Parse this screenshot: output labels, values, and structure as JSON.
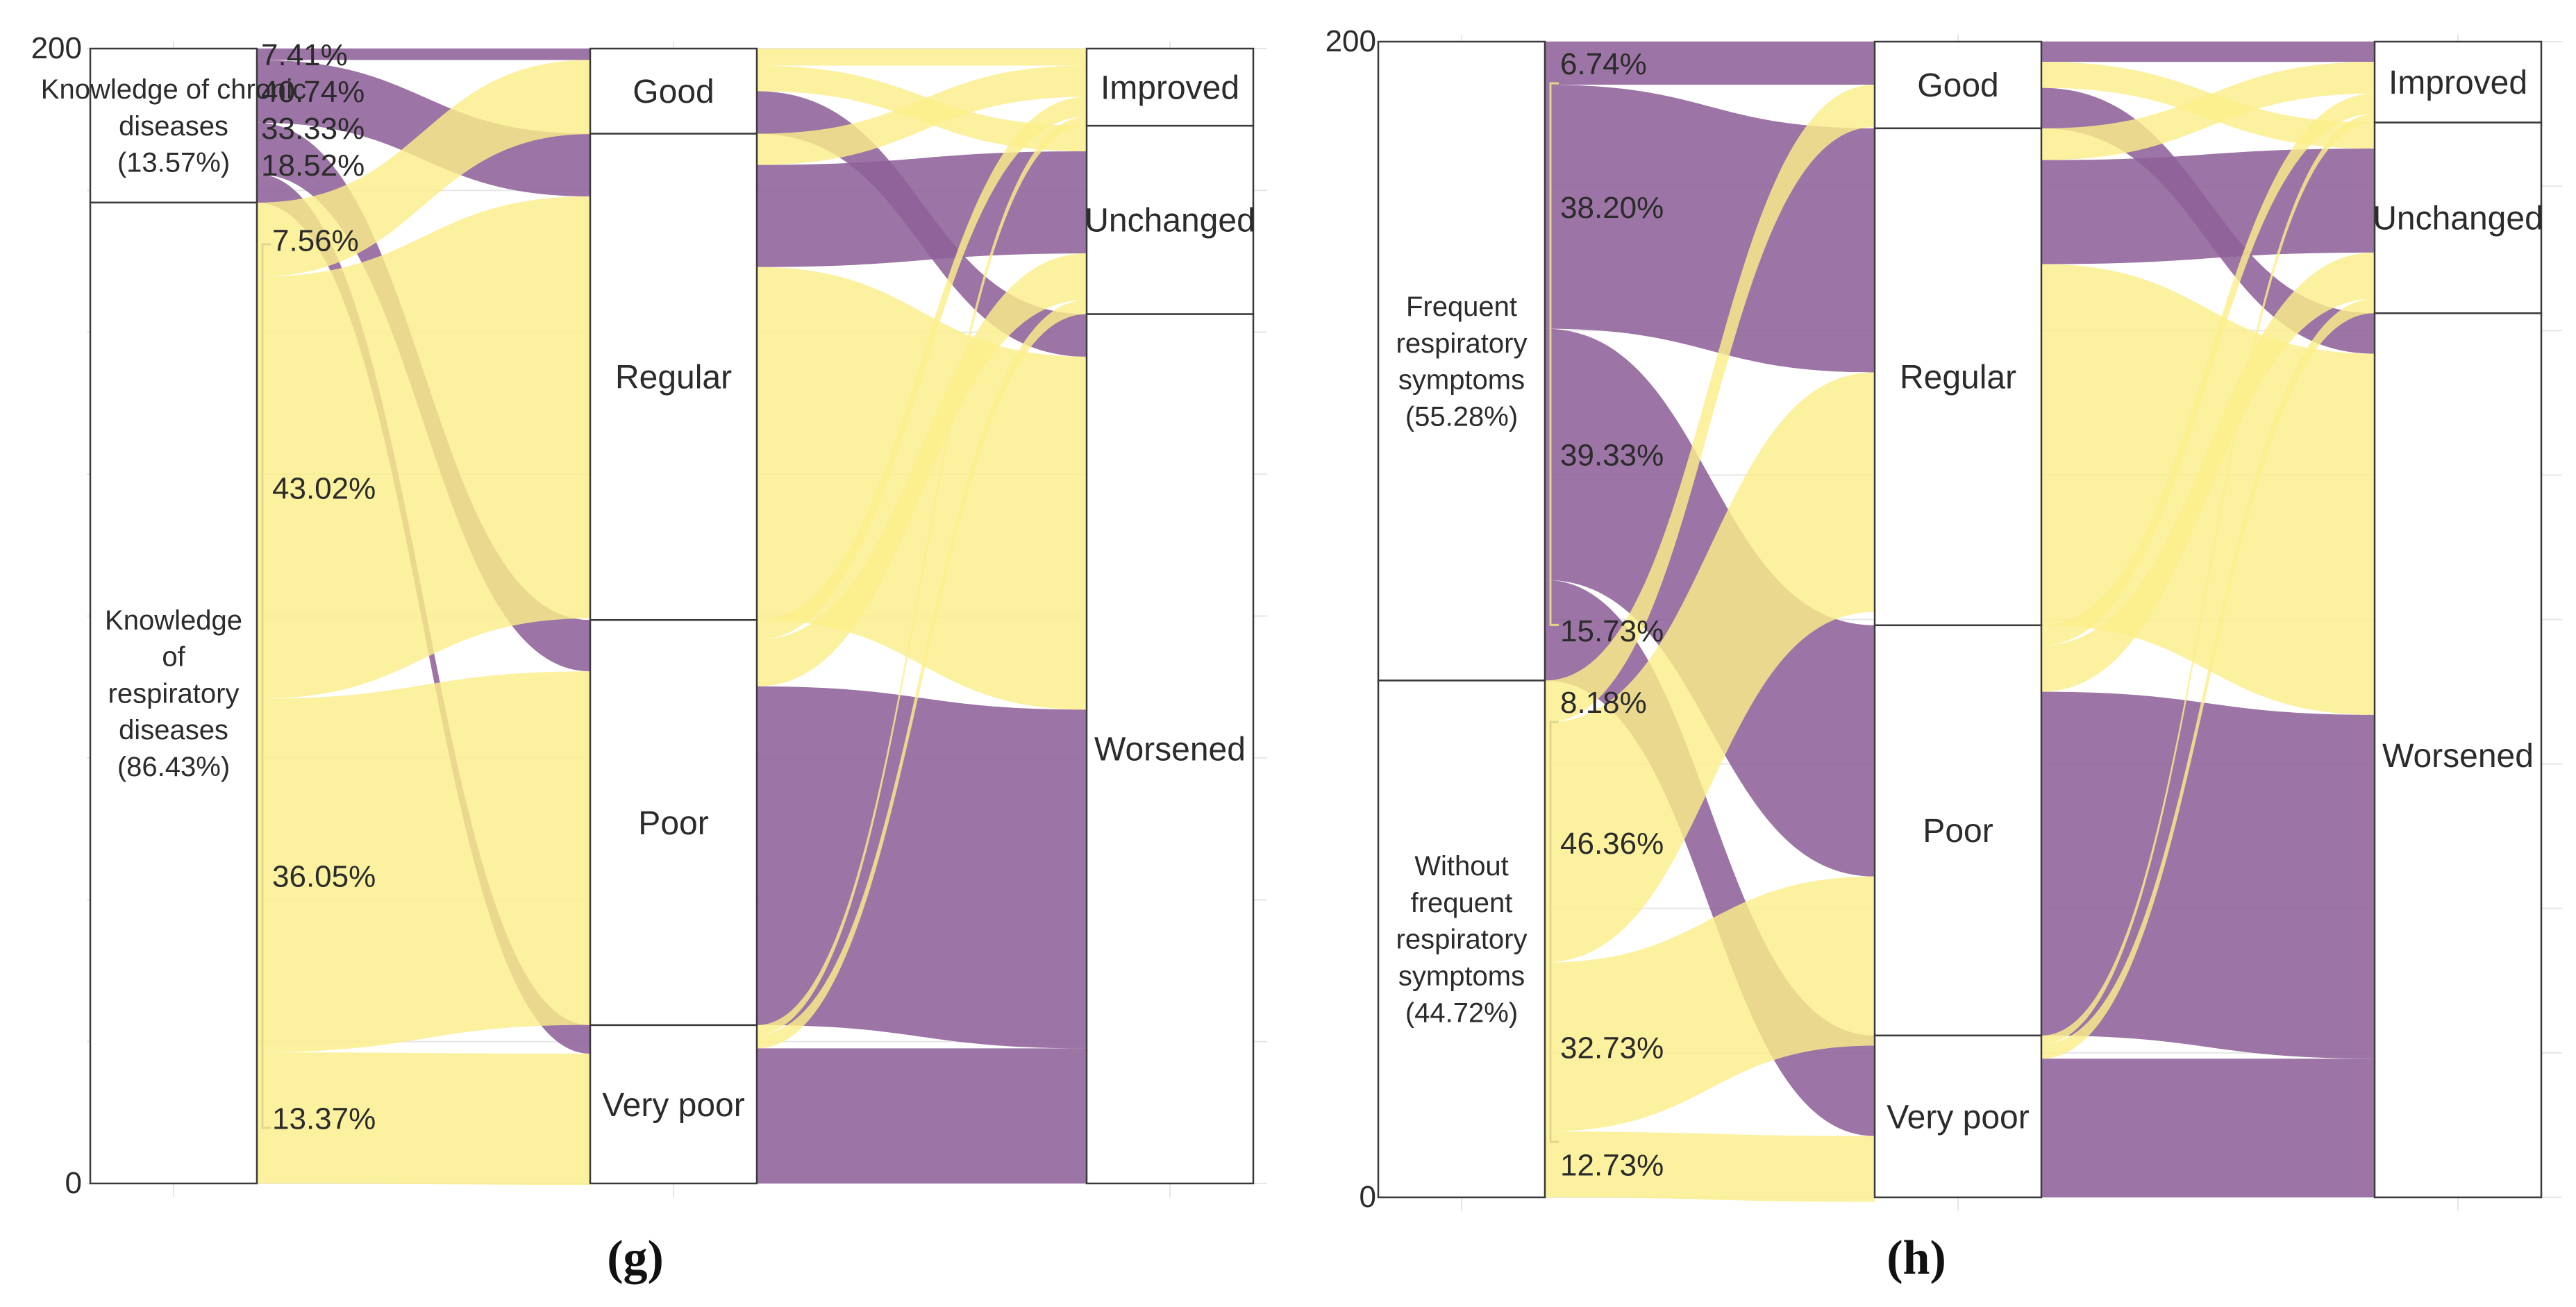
{
  "chart_data": [
    {
      "type": "alluvial",
      "panel_label": "(g)",
      "ylim": [
        0,
        200
      ],
      "y_tick_labels": [
        "200",
        "0"
      ],
      "stages": [
        {
          "name": "knowledge",
          "nodes": [
            {
              "id": "g_chronic",
              "lines": [
                "Knowledge of chronic",
                "diseases",
                "(13.57%)"
              ],
              "value": 27.14
            },
            {
              "id": "g_resp",
              "lines": [
                "Knowledge",
                "of",
                "respiratory",
                "diseases",
                "(86.43%)"
              ],
              "value": 172.86
            }
          ]
        },
        {
          "name": "before",
          "nodes": [
            {
              "id": "g_good",
              "lines": [
                "Good"
              ],
              "value": 15
            },
            {
              "id": "g_regular",
              "lines": [
                "Regular"
              ],
              "value": 85.7
            },
            {
              "id": "g_poor",
              "lines": [
                "Poor"
              ],
              "value": 71.4
            },
            {
              "id": "g_vpoor",
              "lines": [
                "Very poor"
              ],
              "value": 27.9
            }
          ]
        },
        {
          "name": "after",
          "nodes": [
            {
              "id": "g_improved",
              "lines": [
                "Improved"
              ],
              "value": 13.6
            },
            {
              "id": "g_unchanged",
              "lines": [
                "Unchanged"
              ],
              "value": 33.2
            },
            {
              "id": "g_worsened",
              "lines": [
                "Worsened"
              ],
              "value": 153.2
            }
          ]
        }
      ],
      "group_percentages": [
        {
          "group": "g_chronic",
          "labels": [
            "7.41%",
            "40.74%",
            "33.33%",
            "18.52%"
          ]
        },
        {
          "group": "g_resp",
          "labels": [
            "7.56%",
            "43.02%",
            "36.05%",
            "13.37%"
          ]
        }
      ],
      "flows": [
        {
          "from": "g_chronic",
          "to": "g_good",
          "value": 2.01,
          "color": "purple"
        },
        {
          "from": "g_chronic",
          "to": "g_regular",
          "value": 11.06,
          "color": "purple"
        },
        {
          "from": "g_chronic",
          "to": "g_poor",
          "value": 9.05,
          "color": "purple"
        },
        {
          "from": "g_chronic",
          "to": "g_vpoor",
          "value": 5.03,
          "color": "purple"
        },
        {
          "from": "g_resp",
          "to": "g_good",
          "value": 13.07,
          "color": "yellow"
        },
        {
          "from": "g_resp",
          "to": "g_regular",
          "value": 74.37,
          "color": "yellow"
        },
        {
          "from": "g_resp",
          "to": "g_poor",
          "value": 62.31,
          "color": "yellow"
        },
        {
          "from": "g_resp",
          "to": "g_vpoor",
          "value": 23.12,
          "color": "yellow"
        },
        {
          "from": "g_good",
          "to": "g_improved",
          "value": 3.0,
          "color": "yellow"
        },
        {
          "from": "g_good",
          "to": "g_unchanged",
          "value": 4.5,
          "color": "yellow"
        },
        {
          "from": "g_good",
          "to": "g_worsened",
          "value": 7.5,
          "color": "purple"
        },
        {
          "from": "g_regular",
          "to": "g_improved",
          "value": 5.5,
          "color": "yellow"
        },
        {
          "from": "g_regular",
          "to": "g_unchanged",
          "value": 18.0,
          "color": "purple"
        },
        {
          "from": "g_regular",
          "to": "g_worsened",
          "value": 62.2,
          "color": "yellow"
        },
        {
          "from": "g_poor",
          "to": "g_improved",
          "value": 3.5,
          "color": "yellow"
        },
        {
          "from": "g_poor",
          "to": "g_unchanged",
          "value": 8.2,
          "color": "yellow"
        },
        {
          "from": "g_poor",
          "to": "g_worsened",
          "value": 59.7,
          "color": "purple"
        },
        {
          "from": "g_vpoor",
          "to": "g_improved",
          "value": 1.6,
          "color": "yellow"
        },
        {
          "from": "g_vpoor",
          "to": "g_unchanged",
          "value": 2.5,
          "color": "yellow"
        },
        {
          "from": "g_vpoor",
          "to": "g_worsened",
          "value": 23.8,
          "color": "purple"
        }
      ]
    },
    {
      "type": "alluvial",
      "panel_label": "(h)",
      "ylim": [
        0,
        200
      ],
      "y_tick_labels": [
        "200",
        "0"
      ],
      "stages": [
        {
          "name": "symptoms",
          "nodes": [
            {
              "id": "h_freq",
              "lines": [
                "Frequent",
                "respiratory",
                "symptoms",
                "(55.28%)"
              ],
              "value": 110.56
            },
            {
              "id": "h_without",
              "lines": [
                "Without",
                "frequent",
                "respiratory",
                "symptoms",
                "(44.72%)"
              ],
              "value": 89.44
            }
          ]
        },
        {
          "name": "before",
          "nodes": [
            {
              "id": "h_good",
              "lines": [
                "Good"
              ],
              "value": 15
            },
            {
              "id": "h_regular",
              "lines": [
                "Regular"
              ],
              "value": 86
            },
            {
              "id": "h_poor",
              "lines": [
                "Poor"
              ],
              "value": 71
            },
            {
              "id": "h_vpoor",
              "lines": [
                "Very poor"
              ],
              "value": 28
            }
          ]
        },
        {
          "name": "after",
          "nodes": [
            {
              "id": "h_improved",
              "lines": [
                "Improved"
              ],
              "value": 14
            },
            {
              "id": "h_unchanged",
              "lines": [
                "Unchanged"
              ],
              "value": 33
            },
            {
              "id": "h_worsened",
              "lines": [
                "Worsened"
              ],
              "value": 153
            }
          ]
        }
      ],
      "group_percentages": [
        {
          "group": "h_freq",
          "labels": [
            "6.74%",
            "38.20%",
            "39.33%",
            "15.73%"
          ]
        },
        {
          "group": "h_without",
          "labels": [
            "8.18%",
            "46.36%",
            "32.73%",
            "12.73%"
          ]
        }
      ],
      "flows": [
        {
          "from": "h_freq",
          "to": "h_good",
          "value": 7.45,
          "color": "purple"
        },
        {
          "from": "h_freq",
          "to": "h_regular",
          "value": 42.23,
          "color": "purple"
        },
        {
          "from": "h_freq",
          "to": "h_poor",
          "value": 43.48,
          "color": "purple"
        },
        {
          "from": "h_freq",
          "to": "h_vpoor",
          "value": 17.39,
          "color": "purple"
        },
        {
          "from": "h_without",
          "to": "h_good",
          "value": 7.32,
          "color": "yellow"
        },
        {
          "from": "h_without",
          "to": "h_regular",
          "value": 41.46,
          "color": "yellow"
        },
        {
          "from": "h_without",
          "to": "h_poor",
          "value": 29.27,
          "color": "yellow"
        },
        {
          "from": "h_without",
          "to": "h_vpoor",
          "value": 11.39,
          "color": "yellow"
        },
        {
          "from": "h_good",
          "to": "h_improved",
          "value": 3.5,
          "color": "purple"
        },
        {
          "from": "h_good",
          "to": "h_unchanged",
          "value": 4.5,
          "color": "yellow"
        },
        {
          "from": "h_good",
          "to": "h_worsened",
          "value": 7.0,
          "color": "purple"
        },
        {
          "from": "h_regular",
          "to": "h_improved",
          "value": 5.5,
          "color": "yellow"
        },
        {
          "from": "h_regular",
          "to": "h_unchanged",
          "value": 18.0,
          "color": "purple"
        },
        {
          "from": "h_regular",
          "to": "h_worsened",
          "value": 62.5,
          "color": "yellow"
        },
        {
          "from": "h_poor",
          "to": "h_improved",
          "value": 3.5,
          "color": "yellow"
        },
        {
          "from": "h_poor",
          "to": "h_unchanged",
          "value": 8.0,
          "color": "yellow"
        },
        {
          "from": "h_poor",
          "to": "h_worsened",
          "value": 59.5,
          "color": "purple"
        },
        {
          "from": "h_vpoor",
          "to": "h_improved",
          "value": 1.5,
          "color": "yellow"
        },
        {
          "from": "h_vpoor",
          "to": "h_unchanged",
          "value": 2.5,
          "color": "yellow"
        },
        {
          "from": "h_vpoor",
          "to": "h_worsened",
          "value": 24.0,
          "color": "purple"
        }
      ]
    }
  ],
  "colors": {
    "purple": "#8e6199",
    "yellow": "#fbee8a",
    "node_fill": "#ffffff",
    "node_stroke": "#3a3a3a",
    "grid": "#e6e6e6",
    "text": "#2b2b2b",
    "bracket": "#e2d68a"
  }
}
